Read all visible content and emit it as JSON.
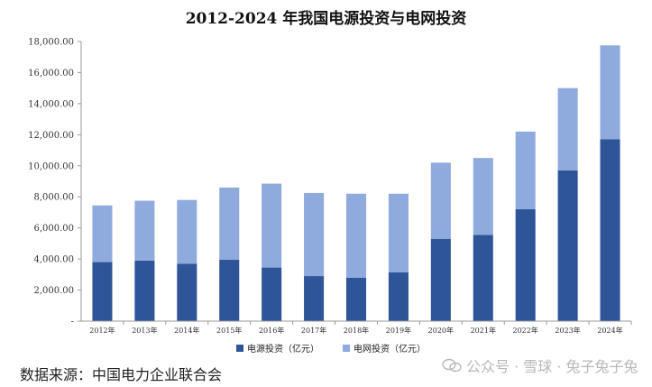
{
  "chart_data": {
    "type": "bar",
    "stacked": true,
    "title": "2012-2024 年我国电源投资与电网投资",
    "categories": [
      "2012年",
      "2013年",
      "2014年",
      "2015年",
      "2016年",
      "2017年",
      "2018年",
      "2019年",
      "2020年",
      "2021年",
      "2022年",
      "2023年",
      "2024年"
    ],
    "series": [
      {
        "name": "电源投资（亿元）",
        "color": "#2E5597",
        "values": [
          3800,
          3900,
          3700,
          3950,
          3450,
          2900,
          2800,
          3150,
          5300,
          5550,
          7200,
          9700,
          11700
        ]
      },
      {
        "name": "电网投资（亿元）",
        "color": "#8FAADC",
        "values": [
          3650,
          3850,
          4100,
          4650,
          5400,
          5350,
          5400,
          5050,
          4900,
          4950,
          5000,
          5300,
          6050
        ]
      }
    ],
    "ylim": [
      0,
      18000
    ],
    "yticks": [
      "-",
      "2,000.00",
      "4,000.00",
      "6,000.00",
      "8,000.00",
      "10,000.00",
      "12,000.00",
      "14,000.00",
      "16,000.00",
      "18,000.00"
    ],
    "legend_position": "bottom",
    "grid": false
  },
  "source_text": "数据来源：中国电力企业联合会",
  "watermark_text": "公众号 · 雪球 · 兔子兔子兔"
}
